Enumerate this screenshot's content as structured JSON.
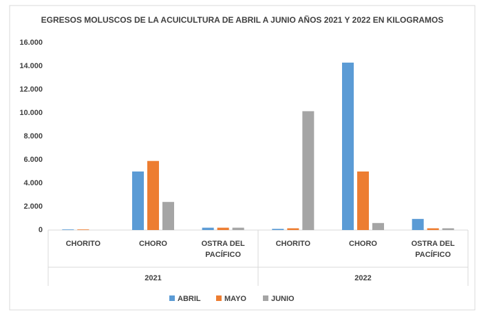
{
  "chart_data": {
    "type": "bar",
    "title": "EGRESOS MOLUSCOS DE LA ACUICULTURA DE ABRIL A JUNIO AÑOS 2021 Y 2022 EN KILOGRAMOS",
    "categories": [
      "CHORITO",
      "CHORO",
      "OSTRA DEL PACÍFICO",
      "CHORITO",
      "CHORO",
      "OSTRA DEL PACÍFICO"
    ],
    "category_groups": [
      "2021",
      "2022"
    ],
    "series": [
      {
        "name": "ABRIL",
        "color": "#5b9bd5",
        "values": [
          50,
          5000,
          200,
          100,
          14300,
          950
        ]
      },
      {
        "name": "MAYO",
        "color": "#ed7d31",
        "values": [
          50,
          5900,
          200,
          150,
          5000,
          150
        ]
      },
      {
        "name": "JUNIO",
        "color": "#a5a5a5",
        "values": [
          0,
          2400,
          200,
          10150,
          600,
          150
        ]
      }
    ],
    "ylim": [
      0,
      16000
    ],
    "yticks": [
      0,
      {
        "value": 2000,
        "label": "2.000"
      },
      {
        "value": 4000,
        "label": "4.000"
      },
      {
        "value": 6000,
        "label": "6.000"
      },
      {
        "value": 8000,
        "label": "8.000"
      },
      {
        "value": 10000,
        "label": "10.000"
      },
      {
        "value": 12000,
        "label": "12.000"
      },
      {
        "value": 14000,
        "label": "14.000"
      },
      {
        "value": 16000,
        "label": "16.000"
      }
    ],
    "grid": false,
    "legend": "bottom"
  }
}
